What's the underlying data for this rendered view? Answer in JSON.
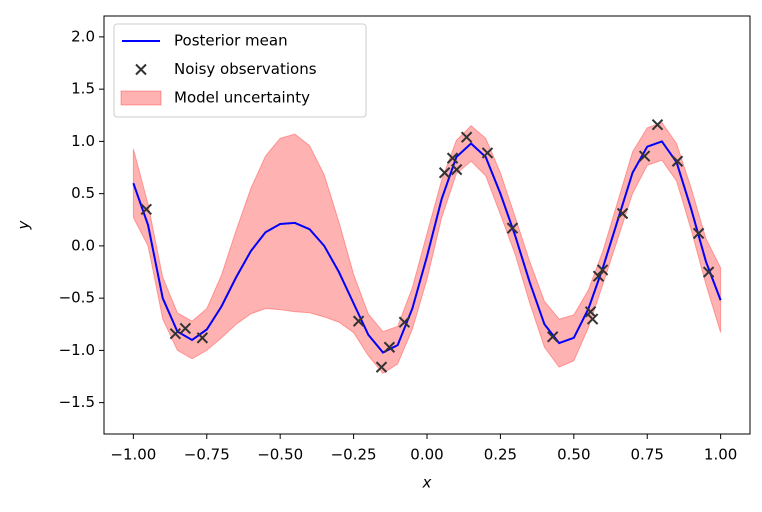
{
  "chart_data": {
    "type": "line",
    "x_label": "x",
    "y_label": "y",
    "xlim": [
      -1.1,
      1.1
    ],
    "ylim": [
      -1.8,
      2.2
    ],
    "xticks": [
      {
        "value": -1,
        "label": "−1.00"
      },
      {
        "value": -0.75,
        "label": "−0.75"
      },
      {
        "value": -0.5,
        "label": "−0.50"
      },
      {
        "value": -0.25,
        "label": "−0.25"
      },
      {
        "value": 0,
        "label": "0.00"
      },
      0.25,
      {
        "value": 0.5,
        "label": "0.50"
      },
      0.75,
      {
        "value": 1,
        "label": "1.00"
      }
    ],
    "yticks": [
      {
        "value": -1.5,
        "label": "−1.5"
      },
      {
        "value": -1,
        "label": "−1.0"
      },
      {
        "value": -0.5,
        "label": "−0.5"
      },
      {
        "value": 0,
        "label": "0.0"
      },
      0.5,
      {
        "value": 1,
        "label": "1.0"
      },
      1.5,
      {
        "value": 2,
        "label": "2.0"
      }
    ],
    "legend": "upper left",
    "x": [
      -1,
      -0.95,
      -0.9,
      -0.85,
      -0.8,
      -0.75,
      -0.7,
      -0.65,
      -0.6,
      -0.55,
      -0.5,
      -0.45,
      -0.4,
      -0.35,
      -0.3,
      -0.25,
      -0.2,
      -0.15,
      -0.1,
      -0.05,
      0,
      0.05,
      0.1,
      0.15,
      0.2,
      0.25,
      0.3,
      0.35,
      0.4,
      0.45,
      0.5,
      0.55,
      0.6,
      0.65,
      0.7,
      0.75,
      0.8,
      0.85,
      0.9,
      0.95,
      1
    ],
    "series": [
      {
        "name": "Posterior mean",
        "type": "line",
        "color": "#0000ff",
        "values": [
          0.6,
          0.2,
          -0.5,
          -0.82,
          -0.9,
          -0.8,
          -0.58,
          -0.3,
          -0.05,
          0.13,
          0.21,
          0.22,
          0.16,
          0,
          -0.25,
          -0.55,
          -0.85,
          -1.02,
          -0.95,
          -0.6,
          -0.1,
          0.45,
          0.85,
          0.98,
          0.85,
          0.5,
          0.1,
          -0.35,
          -0.75,
          -0.93,
          -0.88,
          -0.6,
          -0.2,
          0.25,
          0.7,
          0.95,
          1.0,
          0.8,
          0.35,
          -0.15,
          -0.52
        ]
      },
      {
        "name": "Noisy observations",
        "type": "scatter",
        "color": "#333333",
        "x": [
          -0.956,
          -0.857,
          -0.823,
          -0.765,
          -0.233,
          -0.155,
          -0.128,
          -0.077,
          0.06,
          0.087,
          0.101,
          0.135,
          0.206,
          0.291,
          0.428,
          0.557,
          0.564,
          0.584,
          0.598,
          0.666,
          0.741,
          0.785,
          0.853,
          0.925,
          0.959
        ],
        "values": [
          0.35,
          -0.84,
          -0.79,
          -0.88,
          -0.72,
          -1.16,
          -0.97,
          -0.73,
          0.7,
          0.84,
          0.73,
          1.04,
          0.89,
          0.17,
          -0.87,
          -0.63,
          -0.7,
          -0.29,
          -0.23,
          0.31,
          0.86,
          1.16,
          0.81,
          0.12,
          -0.25
        ]
      },
      {
        "name": "Model uncertainty",
        "type": "band",
        "color": "#ff0000",
        "lower": [
          0.27,
          0,
          -0.7,
          -1.0,
          -1.08,
          -1.0,
          -0.88,
          -0.75,
          -0.65,
          -0.6,
          -0.61,
          -0.63,
          -0.64,
          -0.68,
          -0.73,
          -0.83,
          -1.05,
          -1.22,
          -1.13,
          -0.8,
          -0.32,
          0.27,
          0.69,
          0.81,
          0.67,
          0.3,
          -0.08,
          -0.55,
          -0.97,
          -1.16,
          -1.1,
          -0.78,
          -0.36,
          0.07,
          0.5,
          0.77,
          0.82,
          0.62,
          0.15,
          -0.37,
          -0.83
        ],
        "upper": [
          0.93,
          0.4,
          -0.3,
          -0.64,
          -0.72,
          -0.6,
          -0.28,
          0.15,
          0.55,
          0.86,
          1.03,
          1.07,
          0.96,
          0.68,
          0.23,
          -0.27,
          -0.65,
          -0.82,
          -0.77,
          -0.4,
          0.12,
          0.63,
          1.01,
          1.15,
          1.03,
          0.7,
          0.28,
          -0.15,
          -0.53,
          -0.7,
          -0.66,
          -0.42,
          -0.04,
          0.43,
          0.9,
          1.13,
          1.18,
          0.98,
          0.55,
          0.07,
          -0.21
        ]
      }
    ]
  }
}
